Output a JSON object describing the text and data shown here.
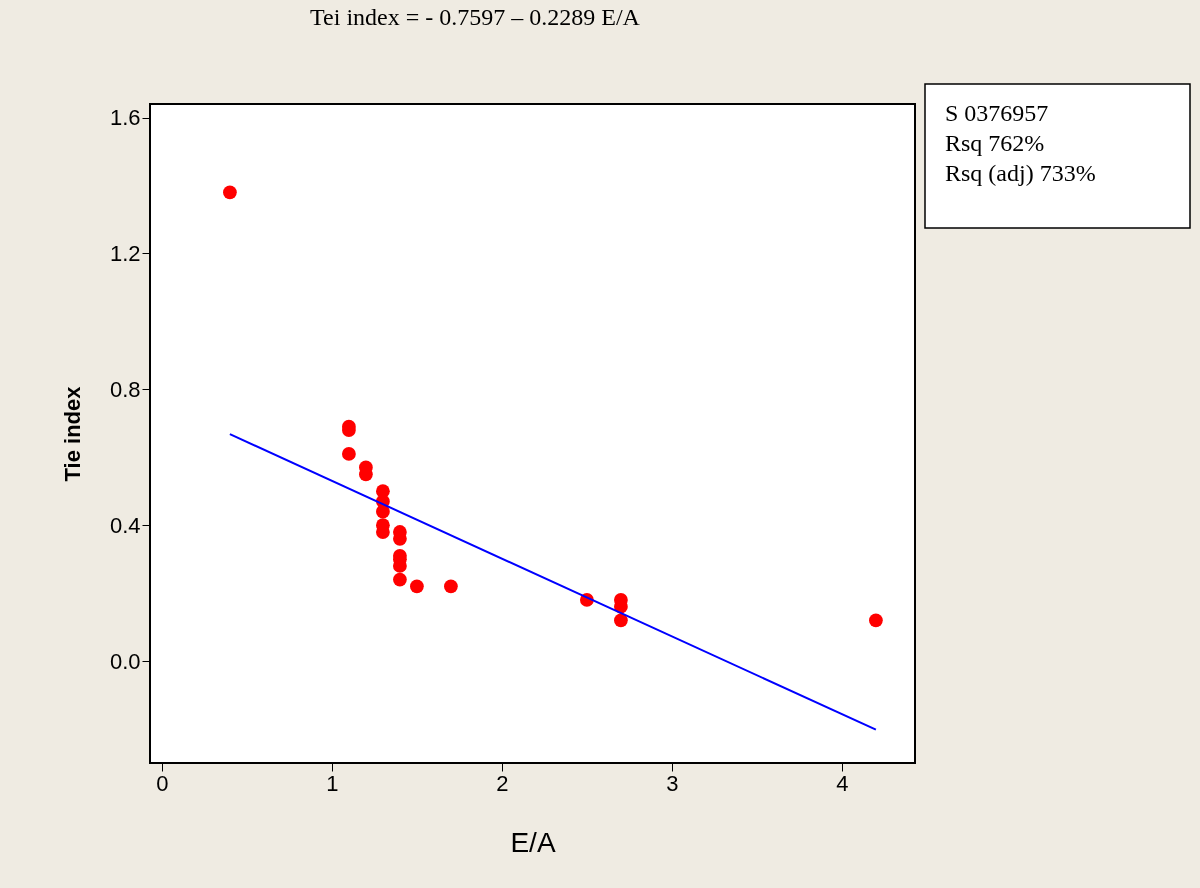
{
  "chart_data": {
    "type": "scatter",
    "title": "Tei index = - 0.7597 – 0.2289 E/A",
    "xlabel": "E/A",
    "ylabel": "Tie index",
    "annotations": [
      "S 0376957",
      "Rsq 762%",
      "Rsq (adj) 733%"
    ],
    "series": [
      {
        "color": "#ff0000",
        "marker": "circle",
        "x": [
          0.4,
          1.1,
          1.1,
          1.1,
          1.2,
          1.2,
          1.3,
          1.3,
          1.3,
          1.3,
          1.3,
          1.4,
          1.4,
          1.4,
          1.4,
          1.4,
          1.4,
          1.5,
          1.7,
          2.5,
          2.7,
          2.7,
          2.7,
          4.2
        ],
        "values": [
          1.38,
          0.69,
          0.68,
          0.61,
          0.57,
          0.55,
          0.5,
          0.47,
          0.44,
          0.4,
          0.38,
          0.38,
          0.36,
          0.31,
          0.3,
          0.28,
          0.24,
          0.22,
          0.22,
          0.18,
          0.18,
          0.16,
          0.12,
          0.12
        ]
      },
      {
        "type": "line",
        "color": "#0000ff",
        "x": [
          0.4,
          4.2
        ],
        "values": [
          0.668,
          -0.202
        ]
      }
    ],
    "xlim": [
      -0.07,
      4.43
    ],
    "ylim": [
      -0.3,
      1.64
    ],
    "xticks": [
      0,
      1,
      2,
      3,
      4
    ],
    "yticks": [
      {
        "value": 0,
        "label": "0.0"
      },
      {
        "value": 0.4,
        "label": "0.4"
      },
      {
        "value": 0.8,
        "label": "0.8"
      },
      {
        "value": 1.2,
        "label": "1.2"
      },
      {
        "value": 1.6,
        "label": "1.6"
      }
    ],
    "grid": false
  }
}
